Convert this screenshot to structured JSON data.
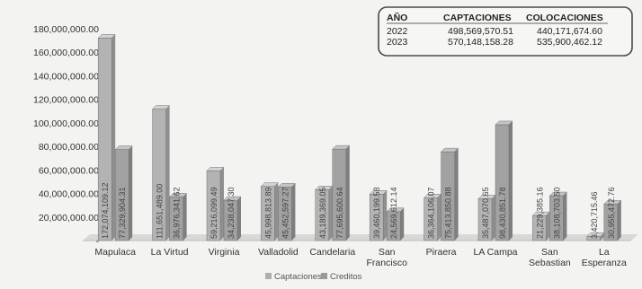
{
  "chart_data": {
    "type": "bar",
    "categories": [
      [
        "Mapulaca"
      ],
      [
        "La Virtud"
      ],
      [
        "Virginia"
      ],
      [
        "Valladolid"
      ],
      [
        "Candelaria"
      ],
      [
        "San",
        "Francisco"
      ],
      [
        "Piraera"
      ],
      [
        "LA Campa"
      ],
      [
        "San",
        "Sebastian"
      ],
      [
        "La",
        "Esperanza"
      ]
    ],
    "series": [
      {
        "name": "Captaciones",
        "values": [
          172074109.12,
          111651489.0,
          59216099.49,
          45998813.89,
          43189369.05,
          39460199.58,
          36364106.07,
          35487070.65,
          21229385.16,
          3420715.46
        ],
        "labels": [
          "172,074,109.12",
          "111,651,489.00",
          "59,216,099.49",
          "45,998,813.89",
          "43,189,369.05",
          "39,460,199.58",
          "36,364,106.07",
          "35,487,070.65",
          "21,229,385.16",
          "3,420,715.46"
        ],
        "color": "#aeaeae"
      },
      {
        "name": "Creditos",
        "values": [
          77329904.31,
          36976341.62,
          34238047.3,
          45452597.27,
          77695600.64,
          24569612.14,
          75413850.88,
          98430851.78,
          38108703.5,
          30955472.76
        ],
        "labels": [
          "77,329,904.31",
          "36,976,341.62",
          "34,238,047.30",
          "45,452,597.27",
          "77,695,600.64",
          "24,569,612.14",
          "75,413,850.88",
          "98,430,851.78",
          "38,108,703.50",
          "30,955,472.76"
        ],
        "color": "#9a9a9a"
      }
    ],
    "yticks": [
      "180,000,000.00",
      "160,000,000.00",
      "140,000,000.00",
      "120,000,000.00",
      "100,000,000.00",
      "80,000,000.00",
      "60,000,000.00",
      "40,000,000.00",
      "20,000,000.00",
      "-"
    ],
    "ylim": [
      0,
      180000000
    ],
    "legend": [
      "Captaciones",
      "Creditos"
    ],
    "legend_position": "bottom",
    "table": {
      "headers": [
        "AÑO",
        "CAPTACIONES",
        "COLOCACIONES"
      ],
      "rows": [
        [
          "2022",
          "498,569,570.51",
          "440,171,674.60"
        ],
        [
          "2023",
          "570,148,158.28",
          "535,900,462.12"
        ]
      ]
    }
  }
}
